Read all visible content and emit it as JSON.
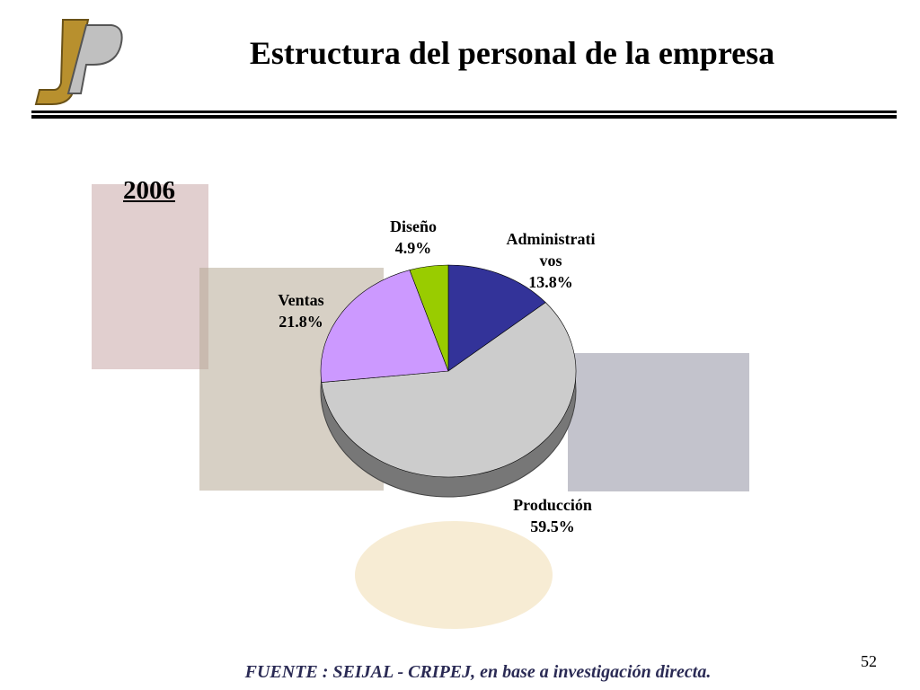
{
  "chart_data": {
    "type": "pie",
    "title": "Estructura del personal de la empresa",
    "subtitle": "2006",
    "categories": [
      "Administrativos",
      "Producción",
      "Ventas",
      "Diseño"
    ],
    "values": [
      13.8,
      59.5,
      21.8,
      4.9
    ],
    "value_labels": [
      "13.8%",
      "59.5%",
      "21.8%",
      "4.9%"
    ],
    "colors": [
      "#333399",
      "#cccccc",
      "#cc99ff",
      "#99cc00"
    ],
    "source": "FUENTE :  SEIJAL - CRIPEJ,  en base a investigación directa.",
    "page_number": "52"
  }
}
